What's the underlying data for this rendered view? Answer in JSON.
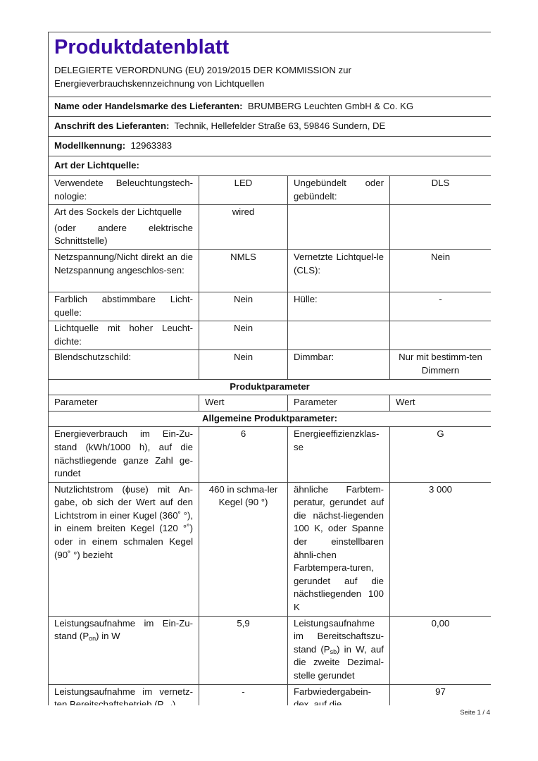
{
  "header": {
    "title": "Produktdatenblatt",
    "regulation_line1": "DELEGIERTE VERORDNUNG (EU) 2019/2015 DER KOMMISSION zur",
    "regulation_line2": "Energieverbrauchskennzeichnung von Lichtquellen",
    "accent_color": "#3a0ca3"
  },
  "supplier": {
    "name_label": "Name oder Handelsmarke des Lieferanten:",
    "name_value": "BRUMBERG Leuchten GmbH & Co. KG",
    "address_label": "Anschrift des Lieferanten:",
    "address_value": "Technik, Hellefelder Straße 63, 59846 Sundern, DE",
    "model_label": "Modellkennung:",
    "model_value": "12963383",
    "type_label": "Art der Lichtquelle:"
  },
  "light_source_rows": [
    [
      "Verwendete Beleuchtungstech-nologie:",
      "LED",
      "Ungebündelt oder gebündelt:",
      "DLS"
    ],
    [
      "Art des Sockels der Lichtquelle",
      "wired",
      "",
      ""
    ],
    [
      "Netzspannung/Nicht direkt an die Netzspannung angeschlos-sen:",
      "NMLS",
      "Vernetzte Lichtquel-le (CLS):",
      "Nein"
    ],
    [
      "Farblich abstimmbare Licht-quelle:",
      "Nein",
      "Hülle:",
      "-"
    ],
    [
      "Lichtquelle mit hoher Leucht-dichte:",
      "Nein",
      "",
      ""
    ],
    [
      "Blendschutzschild:",
      "Nein",
      "Dimmbar:",
      "Nur mit bestimm-ten Dimmern"
    ]
  ],
  "socket_note": "(oder andere elektrische Schnittstelle)",
  "product_params": {
    "section_title": "Produktparameter",
    "col_headers": [
      "Parameter",
      "Wert",
      "Parameter",
      "Wert"
    ],
    "general_title": "Allgemeine Produktparameter:",
    "rows": [
      {
        "p1": "Energieverbrauch im Ein-Zu-stand (kWh/1000 h), auf die nächstliegende ganze Zahl ge-rundet",
        "v1": "6",
        "p2": "Energieeffizienzklas-se",
        "v2": "G"
      },
      {
        "p1": "Nutzlichtstrom (ɸuse) mit An-gabe, ob sich der Wert auf den Lichtstrom in einer Kugel (360˚ °), in einem breiten Kegel (120 °˚) oder in einem schmalen Kegel (90˚ °) bezieht",
        "v1": "460 in schma-ler Kegel (90 °)",
        "p2": "ähnliche Farbtem-peratur, gerundet auf die nächst-liegenden 100 K, oder Spanne der einstellbaren ähnli-chen Farbtempera-turen, gerundet auf die nächstliegenden 100 K",
        "v2": "3 000"
      }
    ],
    "pon": {
      "p1_pre": "Leistungsaufnahme im Ein-Zu-stand (P",
      "p1_sub": "on",
      "p1_post": ") in W",
      "v1": "5,9",
      "p2_pre": "Leistungsaufnahme im Bereitschaftszu-stand (P",
      "p2_sub": "sb",
      "p2_post": ") in W, auf die zweite Dezimal-stelle gerundet",
      "v2": "0,00"
    },
    "pnet": {
      "p1_pre": "Leistungsaufnahme im vernetz-ten Bereitschaftsbetrieb (P",
      "p1_sub": "net",
      "p1_post": ")",
      "v1": "-",
      "p2": "Farbwiedergabein-dex, auf die",
      "v2": "97"
    }
  },
  "footer": {
    "page": "Seite 1 / 4"
  }
}
